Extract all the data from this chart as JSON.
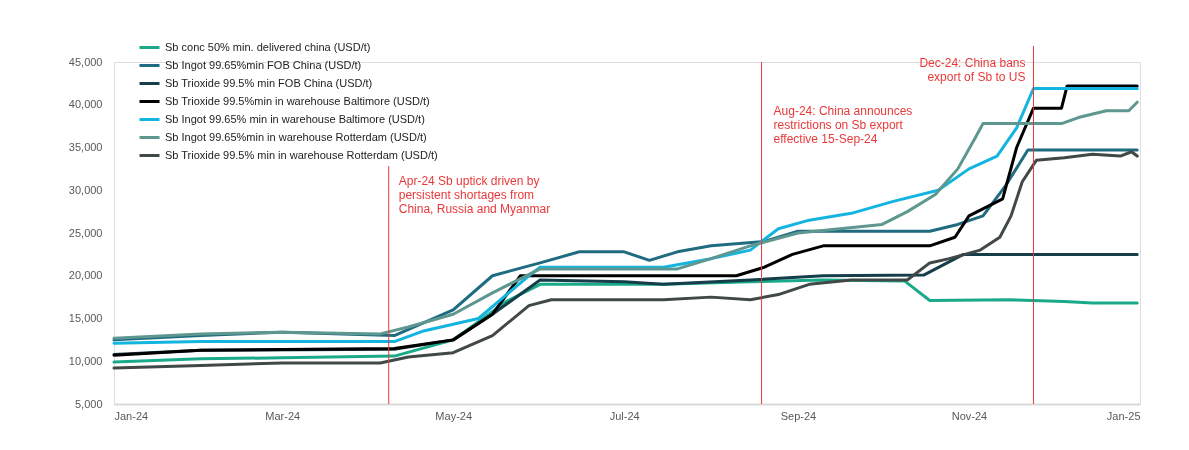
{
  "chart_data": {
    "type": "line",
    "xlim": [
      "2024-01-01",
      "2025-01-01"
    ],
    "xticks": [
      {
        "value": "2024-01-01",
        "label": "Jan-24"
      },
      {
        "value": "2024-03-01",
        "label": "Mar-24"
      },
      {
        "value": "2024-05-01",
        "label": "May-24"
      },
      {
        "value": "2024-07-01",
        "label": "Jul-24"
      },
      {
        "value": "2024-09-01",
        "label": "Sep-24"
      },
      {
        "value": "2024-11-01",
        "label": "Nov-24"
      },
      {
        "value": "2025-01-01",
        "label": "Jan-25"
      }
    ],
    "ylim": [
      5000,
      45000
    ],
    "yticks": [
      {
        "value": 5000,
        "label": "5,000"
      },
      {
        "value": 10000,
        "label": "10,000"
      },
      {
        "value": 15000,
        "label": "15,000"
      },
      {
        "value": 20000,
        "label": "20,000"
      },
      {
        "value": 25000,
        "label": "25,000"
      },
      {
        "value": 30000,
        "label": "30,000"
      },
      {
        "value": 35000,
        "label": "35,000"
      },
      {
        "value": 40000,
        "label": "40,000"
      },
      {
        "value": 45000,
        "label": "45,000"
      }
    ],
    "grid": false,
    "legend": "top left",
    "line_style": "solid",
    "marker": "none",
    "series": [
      {
        "name": "Sb conc 50% min. delivered china (USD/t)",
        "color": "#1aaa8a",
        "x": [
          "2024-01-01",
          "2024-02-01",
          "2024-03-01",
          "2024-04-10",
          "2024-05-01",
          "2024-05-20",
          "2024-06-01",
          "2024-07-15",
          "2024-08-15",
          "2024-09-10",
          "2024-10-09",
          "2024-10-18",
          "2024-11-15",
          "2024-12-05",
          "2024-12-15",
          "2024-12-31"
        ],
        "values": [
          9900,
          10300,
          10400,
          10600,
          12500,
          17000,
          19000,
          19000,
          19300,
          19500,
          19400,
          17100,
          17200,
          17000,
          16800,
          16800
        ]
      },
      {
        "name": "Sb Ingot 99.65%min FOB China  (USD/t)",
        "color": "#1f6b80",
        "x": [
          "2024-01-01",
          "2024-02-01",
          "2024-03-01",
          "2024-04-10",
          "2024-05-01",
          "2024-05-15",
          "2024-06-01",
          "2024-06-15",
          "2024-07-01",
          "2024-07-10",
          "2024-07-20",
          "2024-08-01",
          "2024-08-20",
          "2024-09-01",
          "2024-10-18",
          "2024-10-28",
          "2024-11-06",
          "2024-11-14",
          "2024-11-22",
          "2024-12-31"
        ],
        "values": [
          12500,
          13000,
          13400,
          13000,
          16000,
          20000,
          21500,
          22800,
          22800,
          21800,
          22800,
          23500,
          24000,
          25200,
          25200,
          26000,
          27000,
          30500,
          34700,
          34700
        ]
      },
      {
        "name": "Sb Trioxide 99.5% min FOB China (USD/t)",
        "color": "#163e4a",
        "x": [
          "2024-01-01",
          "2024-02-01",
          "2024-04-10",
          "2024-05-01",
          "2024-05-15",
          "2024-06-01",
          "2024-07-01",
          "2024-07-15",
          "2024-08-15",
          "2024-09-10",
          "2024-10-16",
          "2024-10-30",
          "2024-12-31"
        ],
        "values": [
          10800,
          11300,
          11400,
          12500,
          15500,
          19500,
          19300,
          19000,
          19500,
          20000,
          20100,
          22500,
          22500
        ]
      },
      {
        "name": "Sb Trioxide 99.5%min in warehouse Baltimore  (USD/t)",
        "color": "#000000",
        "x": [
          "2024-01-01",
          "2024-02-01",
          "2024-04-10",
          "2024-05-01",
          "2024-05-15",
          "2024-05-25",
          "2024-08-10",
          "2024-08-20",
          "2024-08-30",
          "2024-09-10",
          "2024-10-18",
          "2024-10-27",
          "2024-11-01",
          "2024-11-10",
          "2024-11-13",
          "2024-11-18",
          "2024-11-24",
          "2024-12-04",
          "2024-12-06",
          "2024-12-31"
        ],
        "values": [
          10700,
          11300,
          11500,
          12500,
          15500,
          20000,
          20000,
          21000,
          22500,
          23500,
          23500,
          24500,
          27000,
          28500,
          29000,
          35000,
          39600,
          39600,
          42200,
          42200
        ]
      },
      {
        "name": "Sb Ingot 99.65% min in warehouse Baltimore  (USD/t)",
        "color": "#13b5e0",
        "x": [
          "2024-01-01",
          "2024-02-01",
          "2024-04-10",
          "2024-04-20",
          "2024-05-10",
          "2024-05-28",
          "2024-06-01",
          "2024-07-15",
          "2024-08-01",
          "2024-08-15",
          "2024-08-25",
          "2024-09-05",
          "2024-09-20",
          "2024-10-05",
          "2024-10-21",
          "2024-11-01",
          "2024-11-11",
          "2024-11-18",
          "2024-11-24",
          "2024-12-31"
        ],
        "values": [
          12100,
          12300,
          12300,
          13500,
          15000,
          20000,
          21000,
          21000,
          22000,
          23000,
          25500,
          26500,
          27300,
          28700,
          30000,
          32500,
          34000,
          37300,
          41900,
          41900
        ]
      },
      {
        "name": "Sb Ingot 99.65%min in warehouse Rotterdam  (USD/t)",
        "color": "#5e9690",
        "x": [
          "2024-01-01",
          "2024-02-01",
          "2024-03-01",
          "2024-04-05",
          "2024-04-15",
          "2024-05-01",
          "2024-05-15",
          "2024-06-01",
          "2024-07-20",
          "2024-08-01",
          "2024-08-15",
          "2024-09-01",
          "2024-10-01",
          "2024-10-10",
          "2024-10-20",
          "2024-10-28",
          "2024-11-03",
          "2024-11-06",
          "2024-12-04",
          "2024-12-10",
          "2024-12-20",
          "2024-12-28",
          "2024-12-31"
        ],
        "values": [
          12700,
          13200,
          13400,
          13200,
          14000,
          15500,
          18000,
          20800,
          20800,
          22000,
          23500,
          25000,
          26000,
          27500,
          29500,
          32500,
          36000,
          37800,
          37800,
          38500,
          39300,
          39300,
          40300
        ]
      },
      {
        "name": "Sb Trioxide 99.5% min in warehouse Rotterdam (USD/t)",
        "color": "#404848",
        "x": [
          "2024-01-01",
          "2024-02-01",
          "2024-03-01",
          "2024-04-05",
          "2024-04-15",
          "2024-05-01",
          "2024-05-15",
          "2024-05-28",
          "2024-06-05",
          "2024-07-15",
          "2024-08-01",
          "2024-08-15",
          "2024-08-25",
          "2024-09-05",
          "2024-09-20",
          "2024-10-10",
          "2024-10-18",
          "2024-10-25",
          "2024-11-05",
          "2024-11-12",
          "2024-11-16",
          "2024-11-20",
          "2024-11-25",
          "2024-12-05",
          "2024-12-15",
          "2024-12-25",
          "2024-12-29",
          "2024-12-31"
        ],
        "values": [
          9200,
          9500,
          9800,
          9800,
          10500,
          11000,
          13000,
          16500,
          17200,
          17200,
          17500,
          17200,
          17800,
          19000,
          19500,
          19500,
          21500,
          22000,
          23000,
          24500,
          27000,
          31000,
          33500,
          33800,
          34200,
          34000,
          34500,
          34000
        ]
      }
    ],
    "ref_lines": [
      {
        "axis": "x",
        "value": "2024-04-08",
        "label": "Apr-24 Sb uptick driven by\npersistent shortages from\nChina, Russia and Myanmar",
        "color": "#e8393a"
      },
      {
        "axis": "x",
        "value": "2024-08-19",
        "label": "Aug-24: China announces\nrestrictions on Sb export\neffective 15-Sep-24",
        "color": "#e8393a"
      },
      {
        "axis": "x",
        "value": "2024-11-24",
        "label": "Dec-24: China bans\nexport of Sb to US",
        "color": "#e8393a"
      }
    ]
  }
}
